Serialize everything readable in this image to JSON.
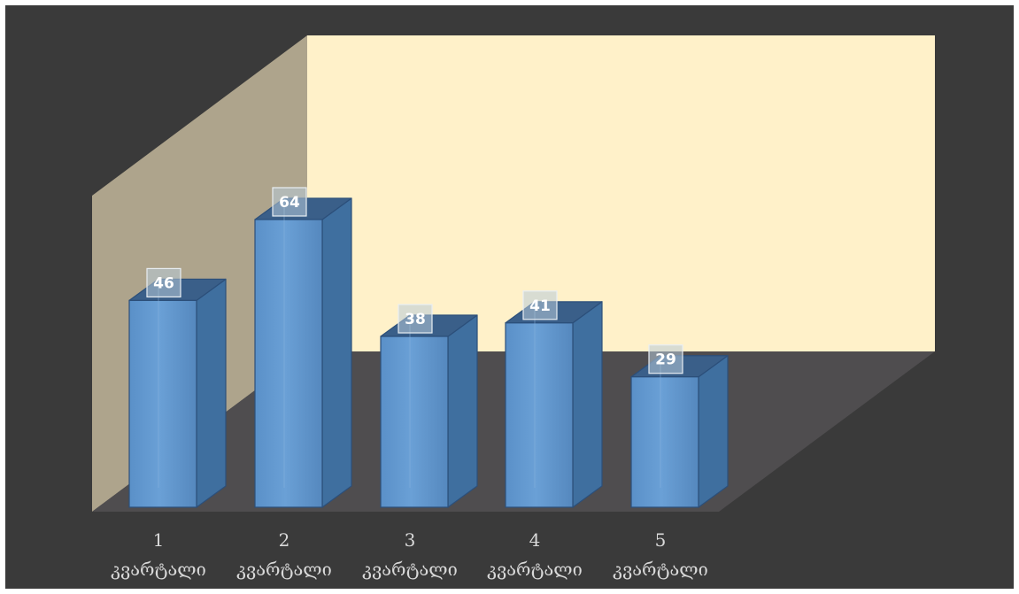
{
  "chart_data": {
    "type": "bar",
    "style": "3d-column",
    "categories": [
      [
        "1",
        "კვარტალი"
      ],
      [
        "2",
        "კვარტალი"
      ],
      [
        "3",
        "კვარტალი"
      ],
      [
        "4",
        "კვარტალი"
      ],
      [
        "5",
        "კვარტალი"
      ]
    ],
    "values": [
      46,
      64,
      38,
      41,
      29
    ],
    "data_labels": [
      "46",
      "64",
      "38",
      "41",
      "29"
    ],
    "title": "",
    "xlabel": "",
    "ylabel": "",
    "ylim": [
      0,
      100
    ],
    "grid": false,
    "legend": "none"
  },
  "colors": {
    "page_background": "#ffffff",
    "chart_area": "#3a3a3a",
    "back_wall": "#fff1c9",
    "side_wall": "#aea48c",
    "floor": "#4f4d4f",
    "bar_front": "#5b93cc",
    "bar_side": "#3f6f9f",
    "bar_top": "#3a5f89",
    "bar_edge": "#2c4f7a",
    "category_text": "#d9d9d9",
    "label_box_fill": "#b8cbd8",
    "label_box_stroke": "#e8eef3",
    "label_text": "#ffffff"
  }
}
